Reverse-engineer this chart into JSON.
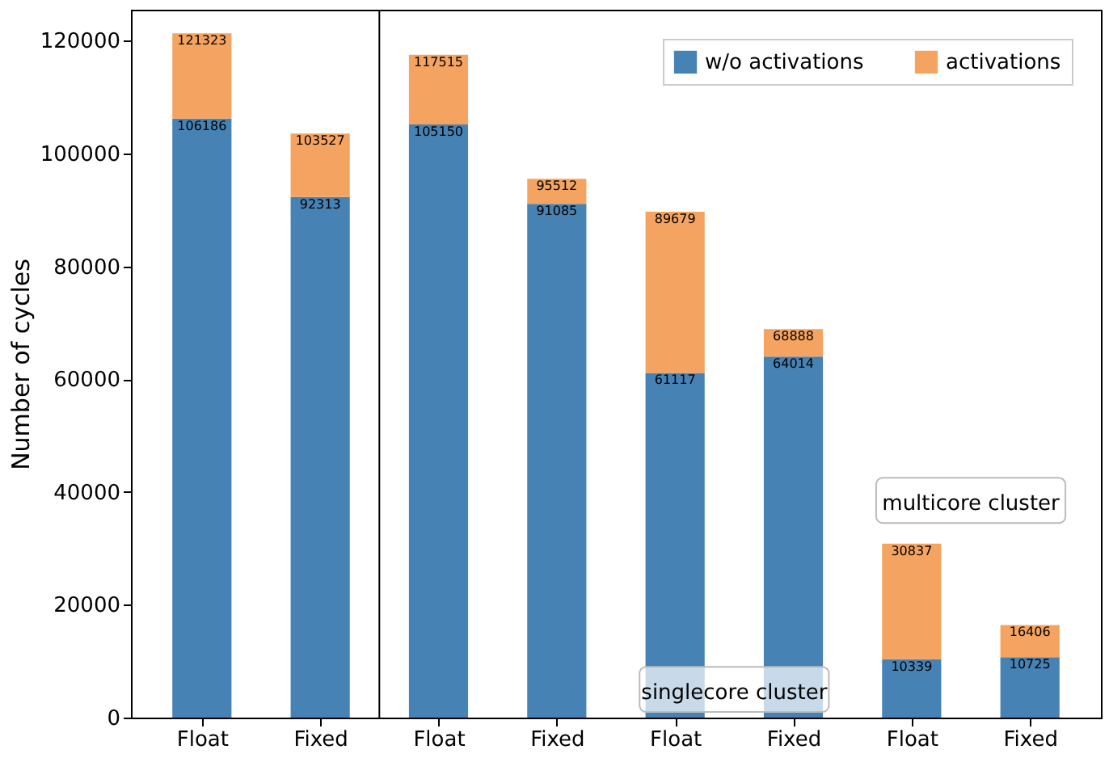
{
  "chart_data": {
    "type": "bar",
    "stacked": true,
    "ylabel": "Number of cycles",
    "categories": [
      "Float",
      "Fixed",
      "Float",
      "Fixed",
      "Float",
      "Fixed",
      "Float",
      "Fixed"
    ],
    "series": [
      {
        "name": "w/o activations",
        "color": "#4682b4",
        "values": [
          106186,
          92313,
          105150,
          91085,
          61117,
          64014,
          10339,
          10725
        ],
        "value_labels": [
          "106186",
          "92313",
          "105150",
          "91085",
          "61117",
          "64014",
          "10339",
          "10725"
        ]
      },
      {
        "name": "activations",
        "color": "#f4a460",
        "values": [
          15137,
          11214,
          12365,
          4427,
          28562,
          4874,
          20498,
          5681
        ]
      }
    ],
    "totals": [
      "121323",
      "103527",
      "117515",
      "95512",
      "89679",
      "68888",
      "30837",
      "16406"
    ],
    "ylim": [
      0,
      125500
    ],
    "yticks": [
      0,
      20000,
      40000,
      60000,
      80000,
      100000,
      120000
    ],
    "annotations": [
      "singlecore cluster",
      "multicore cluster"
    ],
    "legend": "top right",
    "grid": false
  }
}
